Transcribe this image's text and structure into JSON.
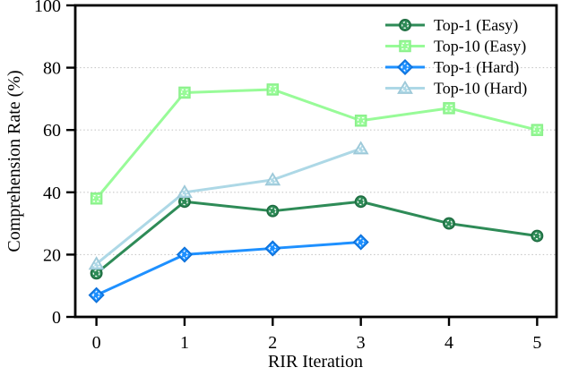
{
  "chart_data": {
    "type": "line",
    "title": "",
    "xlabel": "RIR Iteration",
    "ylabel": "Comprehension Rate (%)",
    "xlim": [
      -0.24,
      5.22
    ],
    "ylim": [
      0,
      100
    ],
    "xticks": [
      0,
      1,
      2,
      3,
      4,
      5
    ],
    "yticks": [
      0,
      20,
      40,
      60,
      80,
      100
    ],
    "grid": {
      "axis": "y",
      "style": "dotted",
      "color": "#c9c9c9",
      "gridline_values": [
        20,
        40,
        60,
        80
      ]
    },
    "legend": {
      "position": "upper-right",
      "frame": false
    },
    "axis_color": "#000000",
    "background": "#ffffff",
    "series": [
      {
        "name": "Top-1 (Easy)",
        "marker": "circle",
        "color": "#2e8b57",
        "edge_color": "#1e6b40",
        "x": [
          0,
          1,
          2,
          3,
          4,
          5
        ],
        "y": [
          14,
          37,
          34,
          37,
          30,
          26
        ]
      },
      {
        "name": "Top-10 (Easy)",
        "marker": "square",
        "color": "#98fb98",
        "edge_color": "#8aef8a",
        "x": [
          0,
          1,
          2,
          3,
          4,
          5
        ],
        "y": [
          38,
          72,
          73,
          63,
          67,
          60
        ]
      },
      {
        "name": "Top-1 (Hard)",
        "marker": "diamond",
        "color": "#1e90ff",
        "edge_color": "#0c6fd8",
        "x": [
          0,
          1,
          2,
          3
        ],
        "y": [
          7,
          20,
          22,
          24
        ]
      },
      {
        "name": "Top-10 (Hard)",
        "marker": "triangle",
        "color": "#add8e6",
        "edge_color": "#9dc8d8",
        "x": [
          0,
          1,
          2,
          3
        ],
        "y": [
          17,
          40,
          44,
          54
        ]
      }
    ]
  }
}
